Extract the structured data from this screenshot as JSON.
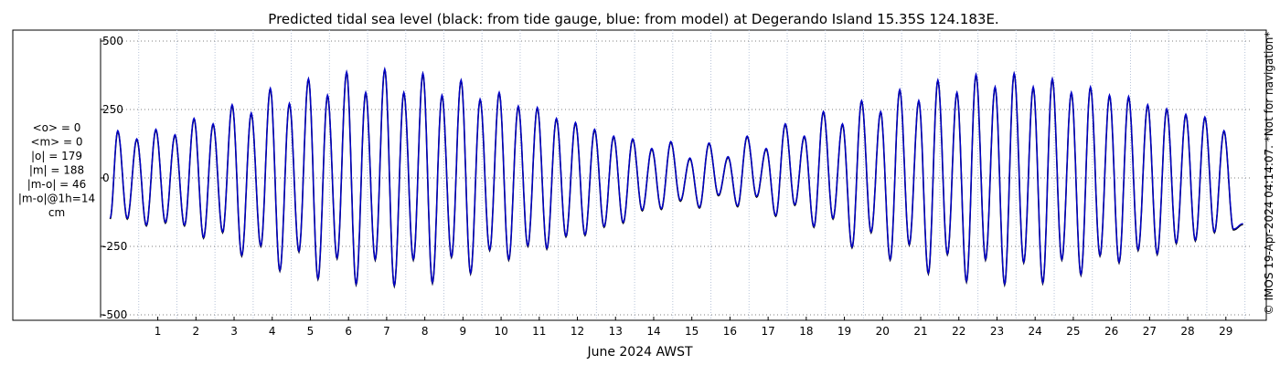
{
  "chart_data": {
    "type": "line",
    "title": "Predicted tidal sea level (black: from tide gauge, blue: from model) at Degerando Island 15.35S 124.183E.",
    "xlabel": "June 2024 AWST",
    "ylabel": "",
    "xlim": [
      0,
      30.2
    ],
    "ylim": [
      -520,
      540
    ],
    "x_ticks": [
      1,
      2,
      3,
      4,
      5,
      6,
      7,
      8,
      9,
      10,
      11,
      12,
      13,
      14,
      15,
      16,
      17,
      18,
      19,
      20,
      21,
      22,
      23,
      24,
      25,
      26,
      27,
      28,
      29
    ],
    "x_tick_labels": [
      "1",
      "2",
      "3",
      "4",
      "5",
      "6",
      "7",
      "8",
      "9",
      "10",
      "11",
      "12",
      "13",
      "14",
      "15",
      "16",
      "17",
      "18",
      "19",
      "20",
      "21",
      "22",
      "23",
      "24",
      "25",
      "26",
      "27",
      "28",
      "29"
    ],
    "y_ticks": [
      500,
      250,
      0,
      -250,
      -500
    ],
    "y_tick_labels": [
      "500",
      "250",
      "0",
      "-250",
      "-500"
    ],
    "grid": true,
    "series": [
      {
        "color": "#000000",
        "x": [
          0.25,
          29.95
        ],
        "high_tides": [
          {
            "x": 0.45,
            "y": 170
          },
          {
            "x": 0.95,
            "y": 140
          },
          {
            "x": 1.45,
            "y": 175
          },
          {
            "x": 1.95,
            "y": 155
          },
          {
            "x": 2.45,
            "y": 215
          },
          {
            "x": 2.95,
            "y": 195
          },
          {
            "x": 3.45,
            "y": 265
          },
          {
            "x": 3.95,
            "y": 235
          },
          {
            "x": 4.45,
            "y": 325
          },
          {
            "x": 4.95,
            "y": 270
          },
          {
            "x": 5.45,
            "y": 360
          },
          {
            "x": 5.95,
            "y": 300
          },
          {
            "x": 6.45,
            "y": 385
          },
          {
            "x": 6.95,
            "y": 310
          },
          {
            "x": 7.45,
            "y": 395
          },
          {
            "x": 7.95,
            "y": 310
          },
          {
            "x": 8.45,
            "y": 380
          },
          {
            "x": 8.95,
            "y": 300
          },
          {
            "x": 9.45,
            "y": 355
          },
          {
            "x": 9.95,
            "y": 285
          },
          {
            "x": 10.45,
            "y": 310
          },
          {
            "x": 10.95,
            "y": 260
          },
          {
            "x": 11.45,
            "y": 255
          },
          {
            "x": 11.95,
            "y": 215
          },
          {
            "x": 12.45,
            "y": 200
          },
          {
            "x": 12.95,
            "y": 175
          },
          {
            "x": 13.45,
            "y": 150
          },
          {
            "x": 13.95,
            "y": 140
          },
          {
            "x": 14.45,
            "y": 105
          },
          {
            "x": 14.95,
            "y": 130
          },
          {
            "x": 15.45,
            "y": 70
          },
          {
            "x": 15.95,
            "y": 125
          },
          {
            "x": 16.45,
            "y": 75
          },
          {
            "x": 16.95,
            "y": 150
          },
          {
            "x": 17.45,
            "y": 105
          },
          {
            "x": 17.95,
            "y": 195
          },
          {
            "x": 18.45,
            "y": 150
          },
          {
            "x": 18.95,
            "y": 240
          },
          {
            "x": 19.45,
            "y": 195
          },
          {
            "x": 19.95,
            "y": 280
          },
          {
            "x": 20.45,
            "y": 240
          },
          {
            "x": 20.95,
            "y": 320
          },
          {
            "x": 21.45,
            "y": 280
          },
          {
            "x": 21.95,
            "y": 355
          },
          {
            "x": 22.45,
            "y": 310
          },
          {
            "x": 22.95,
            "y": 375
          },
          {
            "x": 23.45,
            "y": 330
          },
          {
            "x": 23.95,
            "y": 380
          },
          {
            "x": 24.45,
            "y": 330
          },
          {
            "x": 24.95,
            "y": 360
          },
          {
            "x": 25.45,
            "y": 310
          },
          {
            "x": 25.95,
            "y": 330
          },
          {
            "x": 26.45,
            "y": 300
          },
          {
            "x": 26.95,
            "y": 295
          },
          {
            "x": 27.45,
            "y": 265
          },
          {
            "x": 27.95,
            "y": 250
          },
          {
            "x": 28.45,
            "y": 230
          },
          {
            "x": 28.95,
            "y": 220
          },
          {
            "x": 29.45,
            "y": 170
          }
        ],
        "low_tides": [
          {
            "x": 0.7,
            "y": -150
          },
          {
            "x": 1.2,
            "y": -175
          },
          {
            "x": 1.7,
            "y": -165
          },
          {
            "x": 2.2,
            "y": -175
          },
          {
            "x": 2.7,
            "y": -220
          },
          {
            "x": 3.2,
            "y": -200
          },
          {
            "x": 3.7,
            "y": -285
          },
          {
            "x": 4.2,
            "y": -250
          },
          {
            "x": 4.7,
            "y": -340
          },
          {
            "x": 5.2,
            "y": -270
          },
          {
            "x": 5.7,
            "y": -370
          },
          {
            "x": 6.2,
            "y": -295
          },
          {
            "x": 6.7,
            "y": -390
          },
          {
            "x": 7.2,
            "y": -300
          },
          {
            "x": 7.7,
            "y": -395
          },
          {
            "x": 8.2,
            "y": -300
          },
          {
            "x": 8.7,
            "y": -385
          },
          {
            "x": 9.2,
            "y": -290
          },
          {
            "x": 9.7,
            "y": -350
          },
          {
            "x": 10.2,
            "y": -265
          },
          {
            "x": 10.7,
            "y": -300
          },
          {
            "x": 11.2,
            "y": -250
          },
          {
            "x": 11.7,
            "y": -260
          },
          {
            "x": 12.2,
            "y": -215
          },
          {
            "x": 12.7,
            "y": -210
          },
          {
            "x": 13.2,
            "y": -180
          },
          {
            "x": 13.7,
            "y": -165
          },
          {
            "x": 14.2,
            "y": -120
          },
          {
            "x": 14.7,
            "y": -115
          },
          {
            "x": 15.2,
            "y": -85
          },
          {
            "x": 15.7,
            "y": -110
          },
          {
            "x": 16.2,
            "y": -65
          },
          {
            "x": 16.7,
            "y": -105
          },
          {
            "x": 17.2,
            "y": -70
          },
          {
            "x": 17.7,
            "y": -140
          },
          {
            "x": 18.2,
            "y": -100
          },
          {
            "x": 18.7,
            "y": -180
          },
          {
            "x": 19.2,
            "y": -150
          },
          {
            "x": 19.7,
            "y": -255
          },
          {
            "x": 20.2,
            "y": -200
          },
          {
            "x": 20.7,
            "y": -300
          },
          {
            "x": 21.2,
            "y": -245
          },
          {
            "x": 21.7,
            "y": -350
          },
          {
            "x": 22.2,
            "y": -280
          },
          {
            "x": 22.7,
            "y": -380
          },
          {
            "x": 23.2,
            "y": -300
          },
          {
            "x": 23.7,
            "y": -390
          },
          {
            "x": 24.2,
            "y": -310
          },
          {
            "x": 24.7,
            "y": -385
          },
          {
            "x": 25.2,
            "y": -300
          },
          {
            "x": 25.7,
            "y": -355
          },
          {
            "x": 26.2,
            "y": -285
          },
          {
            "x": 26.7,
            "y": -310
          },
          {
            "x": 27.2,
            "y": -265
          },
          {
            "x": 27.7,
            "y": -280
          },
          {
            "x": 28.2,
            "y": -240
          },
          {
            "x": 28.7,
            "y": -230
          },
          {
            "x": 29.2,
            "y": -200
          },
          {
            "x": 29.7,
            "y": -190
          }
        ]
      },
      {
        "color": "#0000cc",
        "x": [
          0.25,
          29.95
        ],
        "high_tides": [
          {
            "x": 0.45,
            "y": 170
          },
          {
            "x": 0.95,
            "y": 140
          },
          {
            "x": 1.45,
            "y": 175
          },
          {
            "x": 1.95,
            "y": 155
          },
          {
            "x": 2.45,
            "y": 215
          },
          {
            "x": 2.95,
            "y": 195
          },
          {
            "x": 3.45,
            "y": 265
          },
          {
            "x": 3.95,
            "y": 235
          },
          {
            "x": 4.45,
            "y": 325
          },
          {
            "x": 4.95,
            "y": 270
          },
          {
            "x": 5.45,
            "y": 360
          },
          {
            "x": 5.95,
            "y": 300
          },
          {
            "x": 6.45,
            "y": 385
          },
          {
            "x": 6.95,
            "y": 310
          },
          {
            "x": 7.45,
            "y": 395
          },
          {
            "x": 7.95,
            "y": 310
          },
          {
            "x": 8.45,
            "y": 380
          },
          {
            "x": 8.95,
            "y": 300
          },
          {
            "x": 9.45,
            "y": 355
          },
          {
            "x": 9.95,
            "y": 285
          },
          {
            "x": 10.45,
            "y": 310
          },
          {
            "x": 10.95,
            "y": 260
          },
          {
            "x": 11.45,
            "y": 255
          },
          {
            "x": 11.95,
            "y": 215
          },
          {
            "x": 12.45,
            "y": 200
          },
          {
            "x": 12.95,
            "y": 175
          },
          {
            "x": 13.45,
            "y": 150
          },
          {
            "x": 13.95,
            "y": 140
          },
          {
            "x": 14.45,
            "y": 105
          },
          {
            "x": 14.95,
            "y": 130
          },
          {
            "x": 15.45,
            "y": 70
          },
          {
            "x": 15.95,
            "y": 125
          },
          {
            "x": 16.45,
            "y": 75
          },
          {
            "x": 16.95,
            "y": 150
          },
          {
            "x": 17.45,
            "y": 105
          },
          {
            "x": 17.95,
            "y": 195
          },
          {
            "x": 18.45,
            "y": 150
          },
          {
            "x": 18.95,
            "y": 240
          },
          {
            "x": 19.45,
            "y": 195
          },
          {
            "x": 19.95,
            "y": 280
          },
          {
            "x": 20.45,
            "y": 240
          },
          {
            "x": 20.95,
            "y": 320
          },
          {
            "x": 21.45,
            "y": 280
          },
          {
            "x": 21.95,
            "y": 355
          },
          {
            "x": 22.45,
            "y": 310
          },
          {
            "x": 22.95,
            "y": 375
          },
          {
            "x": 23.45,
            "y": 330
          },
          {
            "x": 23.95,
            "y": 380
          },
          {
            "x": 24.45,
            "y": 330
          },
          {
            "x": 24.95,
            "y": 360
          },
          {
            "x": 25.45,
            "y": 310
          },
          {
            "x": 25.95,
            "y": 330
          },
          {
            "x": 26.45,
            "y": 300
          },
          {
            "x": 26.95,
            "y": 295
          },
          {
            "x": 27.45,
            "y": 265
          },
          {
            "x": 27.95,
            "y": 250
          },
          {
            "x": 28.45,
            "y": 230
          },
          {
            "x": 28.95,
            "y": 220
          },
          {
            "x": 29.45,
            "y": 170
          }
        ],
        "low_tides": [
          {
            "x": 0.7,
            "y": -150
          },
          {
            "x": 1.2,
            "y": -175
          },
          {
            "x": 1.7,
            "y": -165
          },
          {
            "x": 2.2,
            "y": -175
          },
          {
            "x": 2.7,
            "y": -220
          },
          {
            "x": 3.2,
            "y": -200
          },
          {
            "x": 3.7,
            "y": -285
          },
          {
            "x": 4.2,
            "y": -250
          },
          {
            "x": 4.7,
            "y": -340
          },
          {
            "x": 5.2,
            "y": -270
          },
          {
            "x": 5.7,
            "y": -370
          },
          {
            "x": 6.2,
            "y": -295
          },
          {
            "x": 6.7,
            "y": -390
          },
          {
            "x": 7.2,
            "y": -300
          },
          {
            "x": 7.7,
            "y": -395
          },
          {
            "x": 8.2,
            "y": -300
          },
          {
            "x": 8.7,
            "y": -385
          },
          {
            "x": 9.2,
            "y": -290
          },
          {
            "x": 9.7,
            "y": -350
          },
          {
            "x": 10.2,
            "y": -265
          },
          {
            "x": 10.7,
            "y": -300
          },
          {
            "x": 11.2,
            "y": -250
          },
          {
            "x": 11.7,
            "y": -260
          },
          {
            "x": 12.2,
            "y": -215
          },
          {
            "x": 12.7,
            "y": -210
          },
          {
            "x": 13.2,
            "y": -180
          },
          {
            "x": 13.7,
            "y": -165
          },
          {
            "x": 14.2,
            "y": -120
          },
          {
            "x": 14.7,
            "y": -115
          },
          {
            "x": 15.2,
            "y": -85
          },
          {
            "x": 15.7,
            "y": -110
          },
          {
            "x": 16.2,
            "y": -65
          },
          {
            "x": 16.7,
            "y": -105
          },
          {
            "x": 17.2,
            "y": -70
          },
          {
            "x": 17.7,
            "y": -140
          },
          {
            "x": 18.2,
            "y": -100
          },
          {
            "x": 18.7,
            "y": -180
          },
          {
            "x": 19.2,
            "y": -150
          },
          {
            "x": 19.7,
            "y": -255
          },
          {
            "x": 20.2,
            "y": -200
          },
          {
            "x": 20.7,
            "y": -300
          },
          {
            "x": 21.2,
            "y": -245
          },
          {
            "x": 21.7,
            "y": -350
          },
          {
            "x": 22.2,
            "y": -280
          },
          {
            "x": 22.7,
            "y": -380
          },
          {
            "x": 23.2,
            "y": -300
          },
          {
            "x": 23.7,
            "y": -390
          },
          {
            "x": 24.2,
            "y": -310
          },
          {
            "x": 24.7,
            "y": -385
          },
          {
            "x": 25.2,
            "y": -300
          },
          {
            "x": 25.7,
            "y": -355
          },
          {
            "x": 26.2,
            "y": -285
          },
          {
            "x": 26.7,
            "y": -310
          },
          {
            "x": 27.2,
            "y": -265
          },
          {
            "x": 27.7,
            "y": -280
          },
          {
            "x": 28.2,
            "y": -240
          },
          {
            "x": 28.7,
            "y": -230
          },
          {
            "x": 29.2,
            "y": -200
          },
          {
            "x": 29.7,
            "y": -190
          }
        ]
      }
    ]
  },
  "stats": [
    "<o> = 0",
    "<m> = 0",
    "|o| = 179",
    "|m| = 188",
    "|m-o| = 46",
    "|m-o|@1h=14",
    "cm"
  ],
  "side_note": "© IMOS 19-Apr-2024 04:14:07. *Not for navigation*",
  "colors": {
    "gauge": "#000000",
    "model": "#0000cc",
    "grid": "#7f7f7f",
    "vgrid": "#b8c4d8"
  }
}
